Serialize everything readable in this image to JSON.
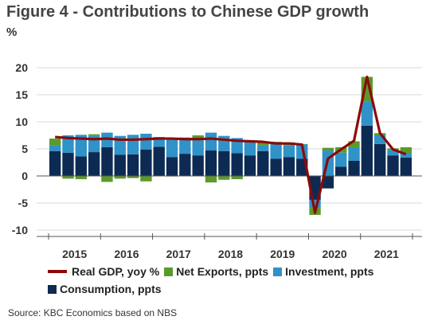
{
  "title": "Figure 4 - Contributions to Chinese GDP growth",
  "unit": "%",
  "source": "Source: KBC Economics based on NBS",
  "colors": {
    "consumption": "#0d2a52",
    "investment": "#2f92c8",
    "net_exports": "#5b9a2a",
    "gdp": "#8b0a0a",
    "grid": "#d9d9d9",
    "axis": "#555555"
  },
  "chart_data": {
    "type": "bar",
    "stacked": true,
    "title": "Figure 4 - Contributions to Chinese GDP growth",
    "ylabel": "%",
    "ylim": [
      -10,
      20
    ],
    "yticks": [
      -10,
      -5,
      0,
      5,
      10,
      15,
      20
    ],
    "grid": true,
    "legend_position": "bottom",
    "year_labels": [
      "2015",
      "2016",
      "2017",
      "2018",
      "2019",
      "2020",
      "2021"
    ],
    "categories": [
      "2015Q1",
      "2015Q2",
      "2015Q3",
      "2015Q4",
      "2016Q1",
      "2016Q2",
      "2016Q3",
      "2016Q4",
      "2017Q1",
      "2017Q2",
      "2017Q3",
      "2017Q4",
      "2018Q1",
      "2018Q2",
      "2018Q3",
      "2018Q4",
      "2019Q1",
      "2019Q2",
      "2019Q3",
      "2019Q4",
      "2020Q1",
      "2020Q2",
      "2020Q3",
      "2020Q4",
      "2021Q1",
      "2021Q2",
      "2021Q3",
      "2021Q4"
    ],
    "series": [
      {
        "name": "Consumption, ppts",
        "type": "bar",
        "values": [
          4.6,
          4.3,
          3.6,
          4.4,
          5.3,
          3.9,
          4.0,
          4.9,
          5.4,
          3.5,
          4.1,
          3.8,
          4.7,
          4.6,
          4.2,
          3.8,
          4.6,
          3.2,
          3.5,
          3.2,
          -4.4,
          -2.3,
          1.7,
          2.8,
          9.3,
          5.9,
          3.8,
          3.4
        ]
      },
      {
        "name": "Investment, ppts",
        "type": "bar",
        "values": [
          1.0,
          3.2,
          4.0,
          3.0,
          2.7,
          3.5,
          3.6,
          2.9,
          1.6,
          3.2,
          2.8,
          2.8,
          3.3,
          2.8,
          2.8,
          2.5,
          1.0,
          2.8,
          2.2,
          2.6,
          -1.5,
          4.7,
          2.6,
          2.5,
          4.5,
          1.6,
          1.0,
          0.8
        ]
      },
      {
        "name": "Net Exports, ppts",
        "type": "bar",
        "values": [
          1.3,
          -0.5,
          -0.6,
          0.3,
          -1.1,
          -0.5,
          -0.4,
          -1.0,
          0.2,
          -0.1,
          0.2,
          0.9,
          -1.2,
          -0.7,
          -0.6,
          0.2,
          0.8,
          0.3,
          0.5,
          0.1,
          -1.3,
          0.5,
          1.0,
          1.1,
          4.5,
          0.4,
          0.3,
          1.1
        ]
      },
      {
        "name": "Real GDP, yoy %",
        "type": "line",
        "values": [
          7.2,
          7.0,
          6.9,
          6.8,
          6.9,
          6.7,
          6.7,
          6.8,
          6.9,
          6.9,
          6.8,
          6.8,
          6.9,
          6.7,
          6.5,
          6.4,
          6.3,
          6.0,
          6.0,
          5.8,
          -6.8,
          3.2,
          4.9,
          6.5,
          18.3,
          7.9,
          4.9,
          4.0
        ]
      }
    ]
  }
}
